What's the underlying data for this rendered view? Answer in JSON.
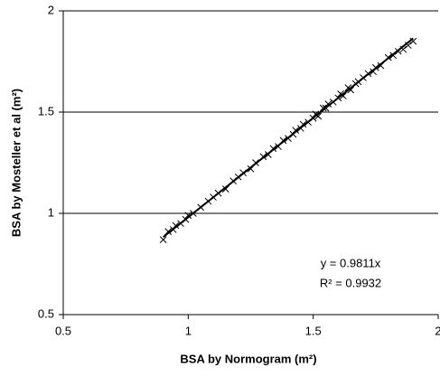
{
  "chart_data": {
    "type": "scatter",
    "xlabel": "BSA by Normogram (m²)",
    "ylabel": "BSA by Mosteller et al (m²)",
    "xlim": [
      0.5,
      2
    ],
    "xticks": [
      0.5,
      1,
      1.5,
      2
    ],
    "ylim": [
      0.5,
      2
    ],
    "yticks": [
      0.5,
      1,
      1.5,
      2
    ],
    "grid": true,
    "series": [
      {
        "marker": "x",
        "color": "#000000",
        "x": [
          0.9,
          0.92,
          0.94,
          0.95,
          0.97,
          0.99,
          1.0,
          1.02,
          1.05,
          1.08,
          1.1,
          1.12,
          1.15,
          1.18,
          1.2,
          1.22,
          1.25,
          1.27,
          1.3,
          1.32,
          1.34,
          1.36,
          1.38,
          1.4,
          1.42,
          1.43,
          1.45,
          1.46,
          1.48,
          1.5,
          1.51,
          1.52,
          1.54,
          1.55,
          1.56,
          1.58,
          1.6,
          1.61,
          1.62,
          1.64,
          1.65,
          1.67,
          1.68,
          1.7,
          1.72,
          1.74,
          1.75,
          1.77,
          1.8,
          1.82,
          1.84,
          1.86,
          1.88,
          1.9
        ],
        "values": [
          0.87,
          0.91,
          0.92,
          0.94,
          0.95,
          0.97,
          0.99,
          1.0,
          1.03,
          1.06,
          1.08,
          1.1,
          1.12,
          1.16,
          1.18,
          1.2,
          1.22,
          1.25,
          1.28,
          1.29,
          1.32,
          1.33,
          1.36,
          1.37,
          1.39,
          1.41,
          1.42,
          1.44,
          1.45,
          1.47,
          1.49,
          1.48,
          1.52,
          1.52,
          1.54,
          1.55,
          1.57,
          1.59,
          1.58,
          1.62,
          1.61,
          1.64,
          1.65,
          1.67,
          1.69,
          1.7,
          1.72,
          1.73,
          1.77,
          1.78,
          1.8,
          1.81,
          1.83,
          1.85
        ]
      }
    ],
    "trendline": {
      "slope": 0.9811,
      "x_range": [
        0.9,
        1.9
      ],
      "color": "#000000"
    },
    "annotations": [
      "y = 0.9811x",
      "R² = 0.9932"
    ]
  }
}
